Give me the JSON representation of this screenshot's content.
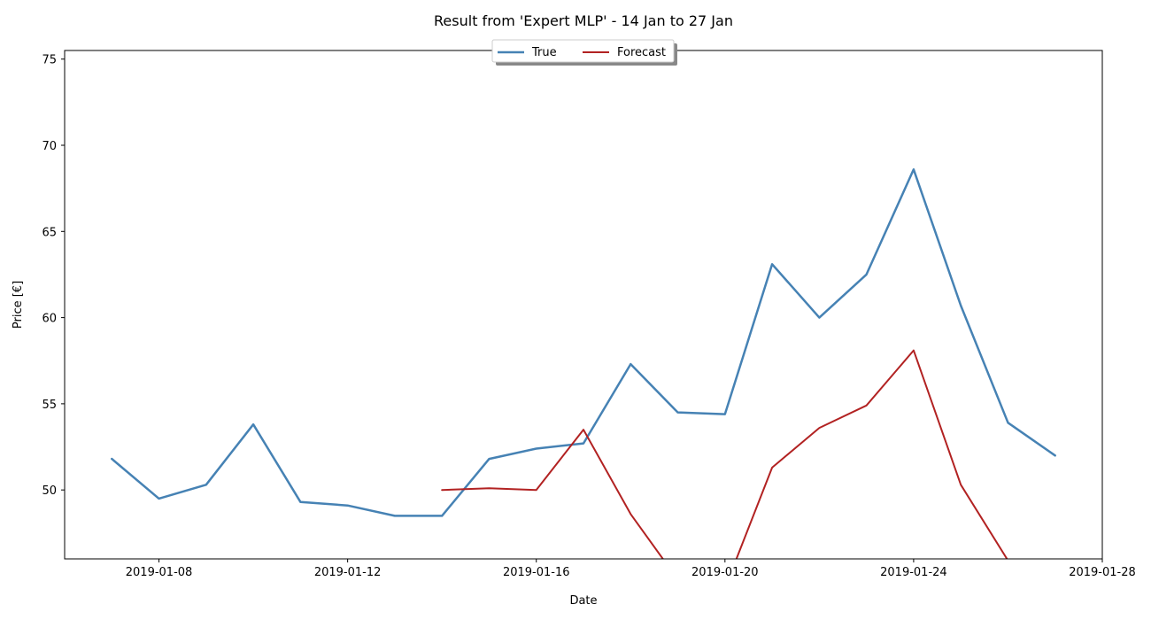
{
  "chart_data": {
    "type": "line",
    "title": "Result from 'Expert MLP' - 14 Jan to 27 Jan",
    "xlabel": "Date",
    "ylabel": "Price [€]",
    "xlim": [
      "2019-01-06",
      "2019-01-28"
    ],
    "ylim": [
      46,
      75.5
    ],
    "x_ticks": [
      "2019-01-08",
      "2019-01-12",
      "2019-01-16",
      "2019-01-20",
      "2019-01-24",
      "2019-01-28"
    ],
    "y_ticks": [
      50,
      55,
      60,
      65,
      70,
      75
    ],
    "grid": false,
    "legend": {
      "placement": "top-center",
      "columns": 2
    },
    "series": [
      {
        "name": "True",
        "color": "#4682b4",
        "x": [
          "2019-01-07",
          "2019-01-08",
          "2019-01-09",
          "2019-01-10",
          "2019-01-11",
          "2019-01-12",
          "2019-01-13",
          "2019-01-14",
          "2019-01-15",
          "2019-01-16",
          "2019-01-17",
          "2019-01-18",
          "2019-01-19",
          "2019-01-20",
          "2019-01-21",
          "2019-01-22",
          "2019-01-23",
          "2019-01-24",
          "2019-01-25",
          "2019-01-26",
          "2019-01-27"
        ],
        "values": [
          51.8,
          49.5,
          50.3,
          53.8,
          49.3,
          49.1,
          48.5,
          48.5,
          51.8,
          52.4,
          52.7,
          57.3,
          54.5,
          54.4,
          63.1,
          60.0,
          62.5,
          68.6,
          60.7,
          53.9,
          52.0
        ]
      },
      {
        "name": "Forecast",
        "color": "#b22222",
        "x": [
          "2019-01-14",
          "2019-01-15",
          "2019-01-16",
          "2019-01-17",
          "2019-01-18",
          "2019-01-19",
          "2019-01-20",
          "2019-01-21",
          "2019-01-22",
          "2019-01-23",
          "2019-01-24",
          "2019-01-25",
          "2019-01-26"
        ],
        "values": [
          50.0,
          50.1,
          50.0,
          53.5,
          48.6,
          44.8,
          44.3,
          51.3,
          53.6,
          54.9,
          58.1,
          50.3,
          45.9
        ]
      }
    ]
  }
}
